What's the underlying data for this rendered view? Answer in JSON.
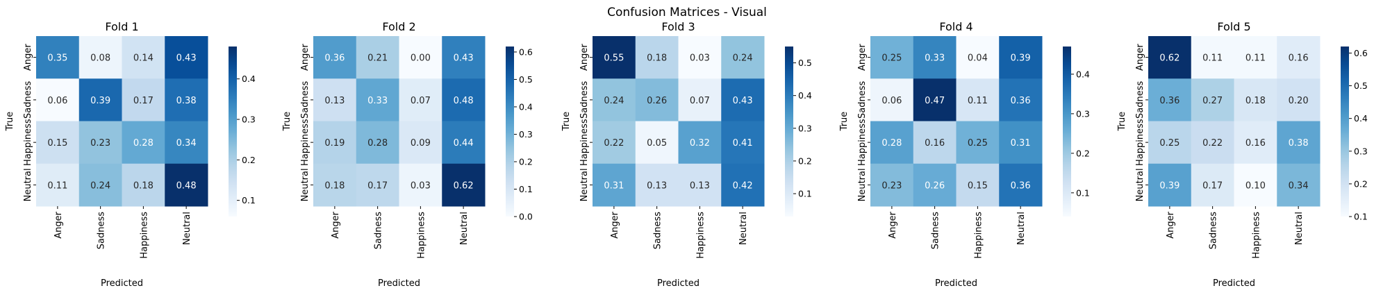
{
  "title": "Confusion Matrices - Visual",
  "colors": {
    "cmap_low": "#f7fbff",
    "cmap_mid": "#6baed6",
    "cmap_high": "#08306b",
    "text_dark": "#262626",
    "text_light": "#ffffff"
  },
  "chart_data": [
    {
      "type": "heatmap",
      "title": "Fold 1",
      "xlabel": "Predicted",
      "ylabel": "True",
      "x_categories": [
        "Anger",
        "Sadness",
        "Happiness",
        "Neutral"
      ],
      "y_categories": [
        "Anger",
        "Sadness",
        "Happiness",
        "Neutral"
      ],
      "values": [
        [
          0.35,
          0.08,
          0.14,
          0.43
        ],
        [
          0.06,
          0.39,
          0.17,
          0.38
        ],
        [
          0.15,
          0.23,
          0.28,
          0.34
        ],
        [
          0.11,
          0.24,
          0.18,
          0.48
        ]
      ],
      "colorbar": {
        "range": [
          0.06,
          0.48
        ],
        "ticks": [
          0.1,
          0.2,
          0.3,
          0.4
        ],
        "tick_labels": [
          "0.1",
          "0.2",
          "0.3",
          "0.4"
        ]
      }
    },
    {
      "type": "heatmap",
      "title": "Fold 2",
      "xlabel": "Predicted",
      "ylabel": "True",
      "x_categories": [
        "Anger",
        "Sadness",
        "Happiness",
        "Neutral"
      ],
      "y_categories": [
        "Anger",
        "Sadness",
        "Happiness",
        "Neutral"
      ],
      "values": [
        [
          0.36,
          0.21,
          0.0,
          0.43
        ],
        [
          0.13,
          0.33,
          0.07,
          0.48
        ],
        [
          0.19,
          0.28,
          0.09,
          0.44
        ],
        [
          0.18,
          0.17,
          0.03,
          0.62
        ]
      ],
      "value_labels": [
        [
          "0.36",
          "0.21",
          "0.00",
          "0.43"
        ],
        [
          "0.13",
          "0.33",
          "0.07",
          "0.48"
        ],
        [
          "0.19",
          "0.28",
          "0.09",
          "0.44"
        ],
        [
          "0.18",
          "0.17",
          "0.03",
          "0.62"
        ]
      ],
      "colorbar": {
        "range": [
          0.0,
          0.62
        ],
        "ticks": [
          0.0,
          0.1,
          0.2,
          0.3,
          0.4,
          0.5,
          0.6
        ],
        "tick_labels": [
          "0.0",
          "0.1",
          "0.2",
          "0.3",
          "0.4",
          "0.5",
          "0.6"
        ]
      }
    },
    {
      "type": "heatmap",
      "title": "Fold 3",
      "xlabel": "Predicted",
      "ylabel": "True",
      "x_categories": [
        "Anger",
        "Sadness",
        "Happiness",
        "Neutral"
      ],
      "y_categories": [
        "Anger",
        "Sadness",
        "Happiness",
        "Neutral"
      ],
      "values": [
        [
          0.55,
          0.18,
          0.03,
          0.24
        ],
        [
          0.24,
          0.26,
          0.07,
          0.43
        ],
        [
          0.22,
          0.05,
          0.32,
          0.41
        ],
        [
          0.31,
          0.13,
          0.13,
          0.42
        ]
      ],
      "colorbar": {
        "range": [
          0.03,
          0.55
        ],
        "ticks": [
          0.1,
          0.2,
          0.3,
          0.4,
          0.5
        ],
        "tick_labels": [
          "0.1",
          "0.2",
          "0.3",
          "0.4",
          "0.5"
        ]
      }
    },
    {
      "type": "heatmap",
      "title": "Fold 4",
      "xlabel": "Predicted",
      "ylabel": "True",
      "x_categories": [
        "Anger",
        "Sadness",
        "Happiness",
        "Neutral"
      ],
      "y_categories": [
        "Anger",
        "Sadness",
        "Happiness",
        "Neutral"
      ],
      "values": [
        [
          0.25,
          0.33,
          0.04,
          0.39
        ],
        [
          0.06,
          0.47,
          0.11,
          0.36
        ],
        [
          0.28,
          0.16,
          0.25,
          0.31
        ],
        [
          0.23,
          0.26,
          0.15,
          0.36
        ]
      ],
      "colorbar": {
        "range": [
          0.04,
          0.47
        ],
        "ticks": [
          0.1,
          0.2,
          0.3,
          0.4
        ],
        "tick_labels": [
          "0.1",
          "0.2",
          "0.3",
          "0.4"
        ]
      }
    },
    {
      "type": "heatmap",
      "title": "Fold 5",
      "xlabel": "Predicted",
      "ylabel": "True",
      "x_categories": [
        "Anger",
        "Sadness",
        "Happiness",
        "Neutral"
      ],
      "y_categories": [
        "Anger",
        "Sadness",
        "Happiness",
        "Neutral"
      ],
      "values": [
        [
          0.62,
          0.11,
          0.11,
          0.16
        ],
        [
          0.36,
          0.27,
          0.18,
          0.2
        ],
        [
          0.25,
          0.22,
          0.16,
          0.38
        ],
        [
          0.39,
          0.17,
          0.1,
          0.34
        ]
      ],
      "value_labels": [
        [
          "0.62",
          "0.11",
          "0.11",
          "0.16"
        ],
        [
          "0.36",
          "0.27",
          "0.18",
          "0.20"
        ],
        [
          "0.25",
          "0.22",
          "0.16",
          "0.38"
        ],
        [
          "0.39",
          "0.17",
          "0.10",
          "0.34"
        ]
      ],
      "colorbar": {
        "range": [
          0.1,
          0.62
        ],
        "ticks": [
          0.1,
          0.2,
          0.3,
          0.4,
          0.5,
          0.6
        ],
        "tick_labels": [
          "0.1",
          "0.2",
          "0.3",
          "0.4",
          "0.5",
          "0.6"
        ]
      }
    }
  ]
}
